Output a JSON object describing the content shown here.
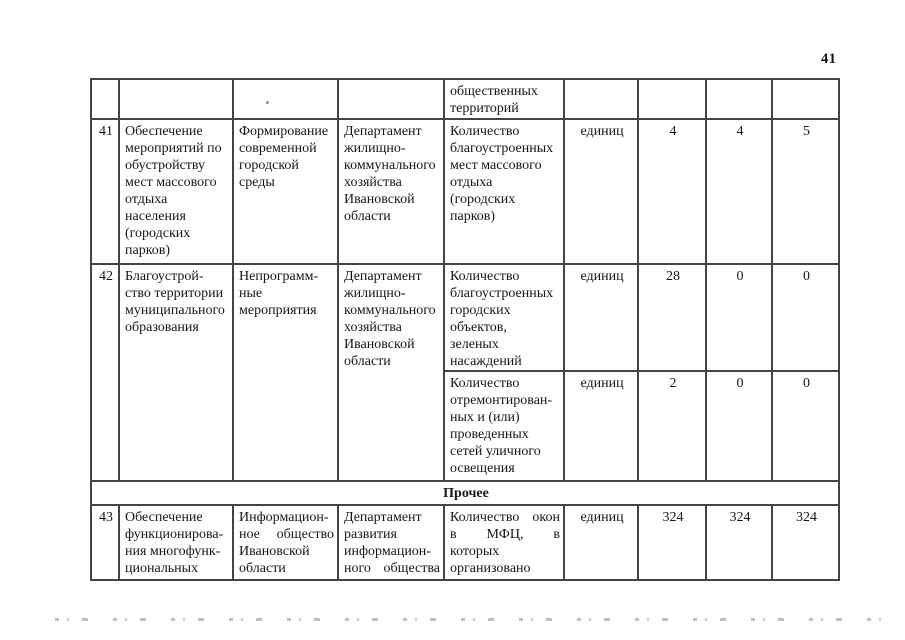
{
  "page": {
    "number": "41"
  },
  "table": {
    "continuation": {
      "indicator": "общественных\nтерриторий"
    },
    "row41": {
      "num": "41",
      "name": "Обеспечение\nмероприятий по\nобустройству\nмест массового\nотдыха\nнаселения\n(городских\nпарков)",
      "program": "Формирование\nсовременной\nгородской\nсреды",
      "department": "Департамент\nжилищно-\nкоммунального\nхозяйства\nИвановской\nобласти",
      "indicator": "Количество\nблагоустроенных\nмест массового\nотдыха\n(городских\nпарков)",
      "unit": "единиц",
      "values": [
        "4",
        "4",
        "5"
      ]
    },
    "row42": {
      "num": "42",
      "name": "Благоустрой-\nство территории\nмуниципального\nобразования",
      "program": "Непрограмм-\nные\nмероприятия",
      "department": "Департамент\nжилищно-\nкоммунального\nхозяйства\nИвановской\nобласти",
      "indicator1": {
        "text": "Количество\nблагоустроенных\nгородских\nобъектов,\nзеленых\nнасаждений",
        "unit": "единиц",
        "values": [
          "28",
          "0",
          "0"
        ]
      },
      "indicator2": {
        "text": "Количество\nотремонтирован-\nных и (или)\nпроведенных\nсетей уличного\nосвещения",
        "unit": "единиц",
        "values": [
          "2",
          "0",
          "0"
        ]
      }
    },
    "section": {
      "label": "Прочее"
    },
    "row43": {
      "num": "43",
      "name": "Обеспечение\nфункционирова-\nния многофунк-\nциональных",
      "program": "Информацион-\nное общество\nИвановской\nобласти",
      "department": "Департамент\nразвития\nинформацион-\nного общества",
      "indicator": "Количество окон\nв МФЦ, в\nкоторых\nорганизовано",
      "unit": "единиц",
      "values": [
        "324",
        "324",
        "324"
      ]
    }
  }
}
